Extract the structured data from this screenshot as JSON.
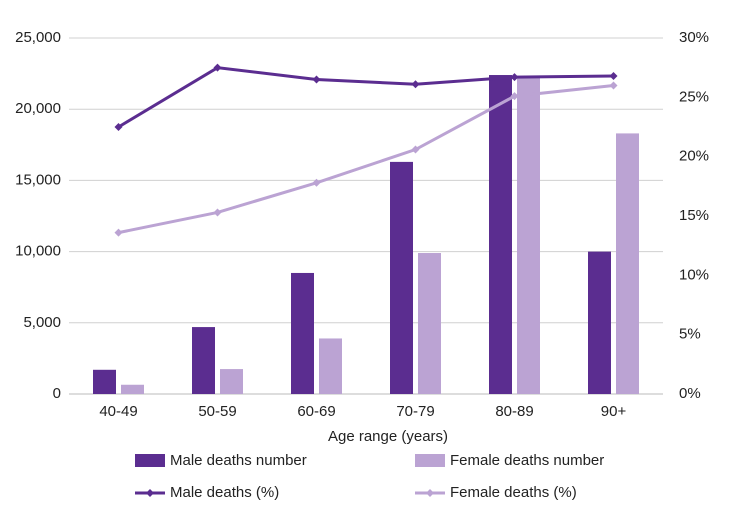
{
  "chart_data": {
    "type": "combo",
    "x_label": "Age range (years)",
    "categories": [
      "40-49",
      "50-59",
      "60-69",
      "70-79",
      "80-89",
      "90+"
    ],
    "series": [
      {
        "name": "Male deaths number",
        "type": "bar",
        "color": "#5b2d90",
        "values": [
          1700,
          4700,
          8500,
          16300,
          22400,
          10000
        ]
      },
      {
        "name": "Female deaths number",
        "type": "bar",
        "color": "#bba3d3",
        "values": [
          650,
          1750,
          3900,
          9900,
          22300,
          18300
        ]
      },
      {
        "name": "Male deaths (%)",
        "type": "line",
        "axis": "y2",
        "color": "#5b2d90",
        "values": [
          22.5,
          27.5,
          26.5,
          26.1,
          26.7,
          26.8
        ]
      },
      {
        "name": "Female deaths (%)",
        "type": "line",
        "axis": "y2",
        "color": "#bba3d3",
        "values": [
          13.6,
          15.3,
          17.8,
          20.6,
          25.1,
          26.0
        ]
      }
    ],
    "ylim": [
      0,
      25000
    ],
    "yticks": [
      0,
      {
        "value": 5000,
        "label": "5,000"
      },
      {
        "value": 10000,
        "label": "10,000"
      },
      {
        "value": 15000,
        "label": "15,000"
      },
      {
        "value": 20000,
        "label": "20,000"
      },
      {
        "value": 25000,
        "label": "25,000"
      }
    ],
    "y2lim": [
      0,
      30
    ],
    "y2ticks": [
      {
        "value": 0,
        "label": "0%"
      },
      {
        "value": 5,
        "label": "5%"
      },
      {
        "value": 10,
        "label": "10%"
      },
      {
        "value": 15,
        "label": "15%"
      },
      {
        "value": 20,
        "label": "20%"
      },
      {
        "value": 25,
        "label": "25%"
      },
      {
        "value": 30,
        "label": "30%"
      }
    ],
    "grid": true,
    "legend": "bottom"
  }
}
